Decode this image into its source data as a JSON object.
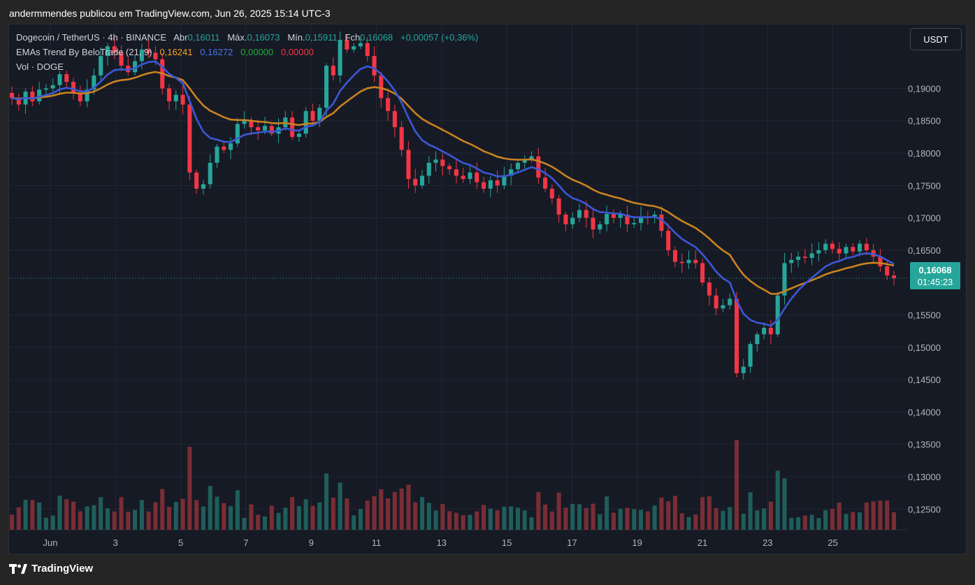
{
  "header": {
    "publisher_line": "andermmendes publicou em TradingView.com, Jun 26, 2025 15:14 UTC-3"
  },
  "legend": {
    "symbol": "Dogecoin / TetherUS · 4h · BINANCE",
    "open_label": "Abr",
    "open": "0,16011",
    "high_label": "Máx.",
    "high": "0,16073",
    "low_label": "Mín.",
    "low": "0,15911",
    "close_label": "Fch",
    "close": "0,16068",
    "change": "+0,00057 (+0,36%)",
    "ema_indicator": "EMAs Trend By BeloTrade (21, 9)",
    "ema_values": [
      "0,16241",
      "0,16272",
      "0,00000",
      "0,00000"
    ],
    "volume_label": "Vol · DOGE"
  },
  "currency_button": "USDT",
  "last_price": {
    "price": "0,16068",
    "countdown": "01:45:23"
  },
  "brand": {
    "name": "TradingView"
  },
  "colors": {
    "background": "#161a25",
    "up": "#26a69a",
    "down": "#f23645",
    "ema_fast": "#3c57d6",
    "ema_slow": "#c98220",
    "grid": "#232734"
  },
  "chart_data": {
    "type": "candlestick",
    "x_tick_labels": [
      "Jun",
      "3",
      "5",
      "7",
      "9",
      "11",
      "13",
      "15",
      "17",
      "19",
      "21",
      "23",
      "25"
    ],
    "y_tick_labels": [
      "0,19000",
      "0,18500",
      "0,18000",
      "0,17500",
      "0,17000",
      "0,16500",
      "0,15500",
      "0,15000",
      "0,14500",
      "0,14000",
      "0,13500",
      "0,13000",
      "0,12500"
    ],
    "y_range": [
      0.1205,
      0.1975
    ],
    "grid": true,
    "candle_closes": [
      0.1885,
      0.1875,
      0.1895,
      0.188,
      0.1898,
      0.19,
      0.1905,
      0.1922,
      0.191,
      0.1892,
      0.188,
      0.1898,
      0.192,
      0.195,
      0.1965,
      0.1955,
      0.1935,
      0.1925,
      0.1942,
      0.196,
      0.1955,
      0.1945,
      0.19,
      0.188,
      0.189,
      0.1875,
      0.177,
      0.1745,
      0.1752,
      0.1785,
      0.181,
      0.1805,
      0.1815,
      0.1845,
      0.185,
      0.184,
      0.1835,
      0.1842,
      0.183,
      0.184,
      0.1855,
      0.1825,
      0.183,
      0.1865,
      0.185,
      0.187,
      0.1935,
      0.192,
      0.1975,
      0.196,
      0.1965,
      0.197,
      0.195,
      0.192,
      0.1885,
      0.1865,
      0.184,
      0.1805,
      0.176,
      0.175,
      0.1765,
      0.1785,
      0.179,
      0.178,
      0.1775,
      0.1765,
      0.176,
      0.177,
      0.1755,
      0.1745,
      0.1758,
      0.175,
      0.1765,
      0.1775,
      0.1785,
      0.179,
      0.1795,
      0.1762,
      0.1745,
      0.173,
      0.1705,
      0.169,
      0.17,
      0.1712,
      0.17,
      0.1682,
      0.169,
      0.1706,
      0.17,
      0.1705,
      0.169,
      0.1692,
      0.1702,
      0.17,
      0.1705,
      0.168,
      0.165,
      0.1632,
      0.163,
      0.1635,
      0.163,
      0.16,
      0.158,
      0.156,
      0.1565,
      0.1575,
      0.146,
      0.147,
      0.1505,
      0.152,
      0.153,
      0.152,
      0.158,
      0.163,
      0.1635,
      0.164,
      0.1638,
      0.1645,
      0.165,
      0.166,
      0.1652,
      0.1645,
      0.1655,
      0.1648,
      0.166,
      0.165,
      0.164,
      0.1625,
      0.1611,
      0.1607
    ],
    "volume_note": "volume bars per candle, colored by candle direction",
    "series": [
      {
        "name": "EMA 21",
        "color": "#c98220",
        "last": "0,16241"
      },
      {
        "name": "EMA 9",
        "color": "#3c57d6",
        "last": "0,16272"
      }
    ]
  }
}
